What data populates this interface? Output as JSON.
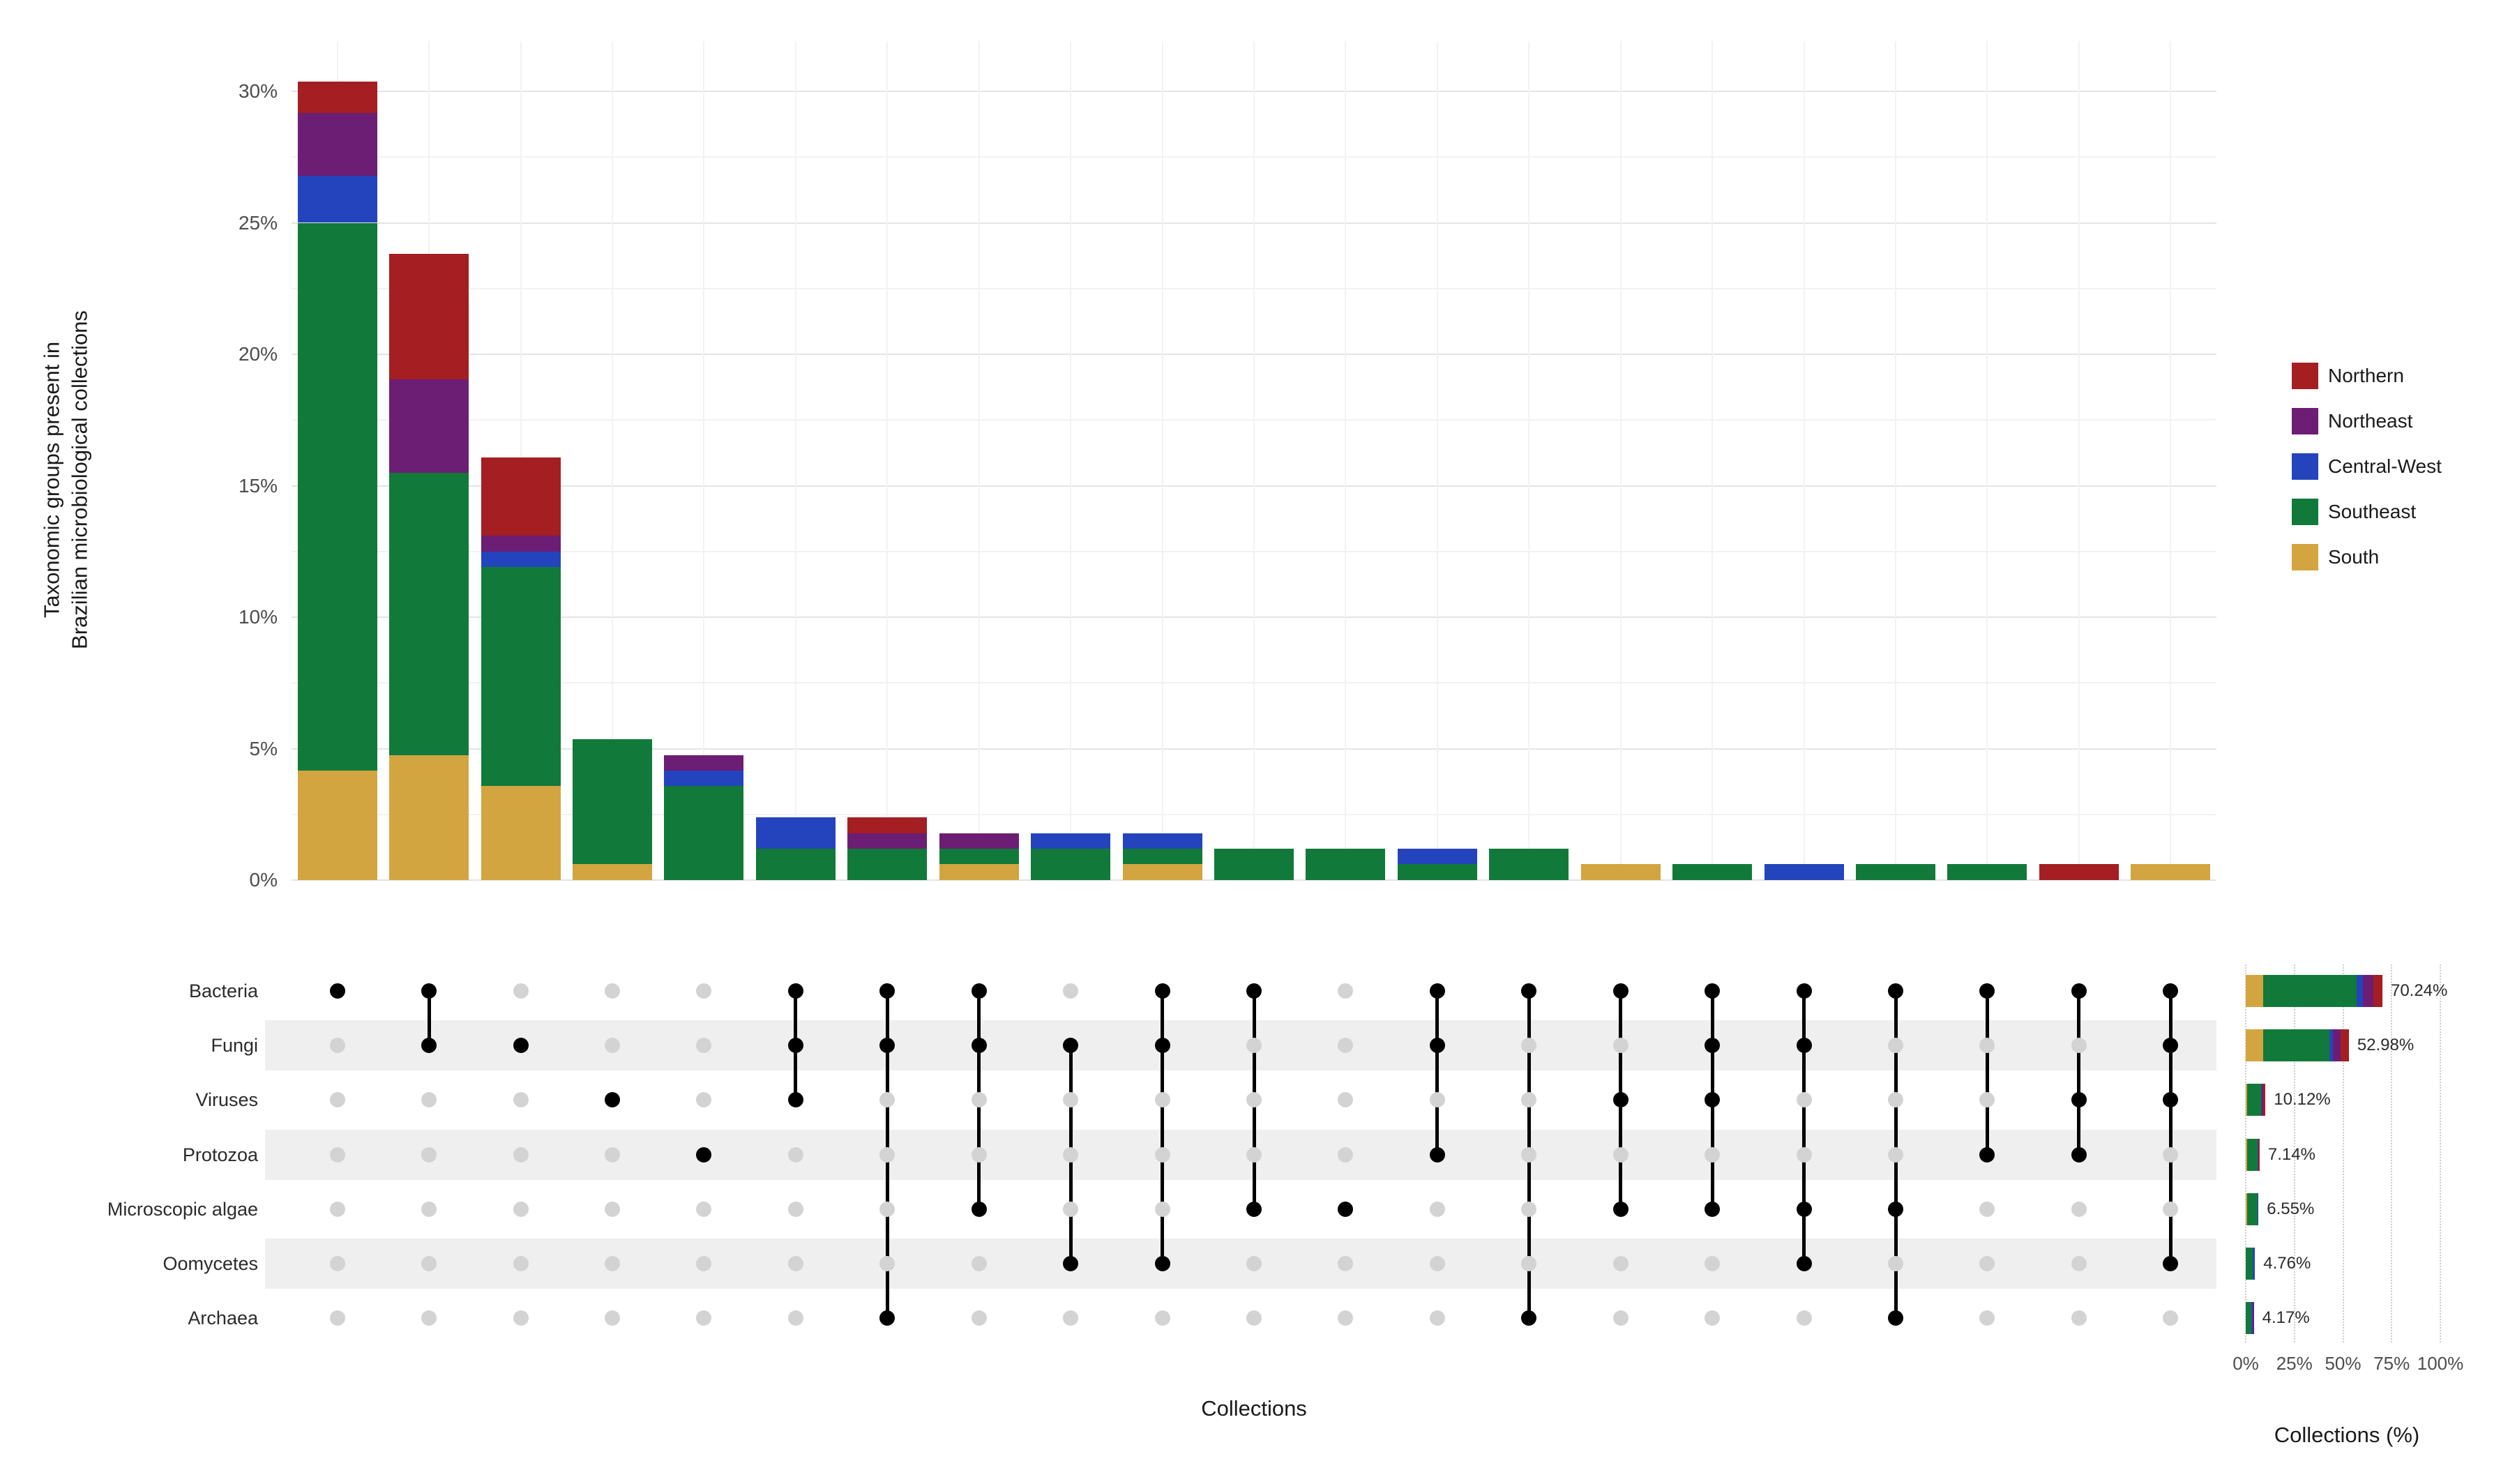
{
  "chart_data": {
    "type": "upset",
    "description": "UpSet plot: stacked intersection-size bars (top), set membership dot matrix (bottom left), stacked set-size bars (bottom right). All values in percent of collections.",
    "xlabel": "Collections",
    "ylabel_lines": [
      "Taxonomic groups present in",
      "Brazilian microbiological collections"
    ],
    "regions": [
      "South",
      "Southeast",
      "Central-West",
      "Northeast",
      "Northern"
    ],
    "region_colors": {
      "Northern": "#a41e22",
      "Northeast": "#6c1d74",
      "Central-West": "#2444bd",
      "Southeast": "#117a3a",
      "South": "#d3a540"
    },
    "style": {
      "grid_major": "#e4e4e4",
      "grid_minor": "#f2f2f2",
      "stripe": "#efefef",
      "inactive_dot": "#d3d3d3",
      "active_dot": "#000000",
      "dotted_grid": "#cccccc",
      "tick_text": "#4d4d4d",
      "label_text": "#2b2b2b"
    },
    "main_y_axis": {
      "tick_labels": [
        "0%",
        "5%",
        "10%",
        "15%",
        "20%",
        "25%",
        "30%"
      ],
      "tick_values": [
        0,
        5,
        10,
        15,
        20,
        25,
        30
      ],
      "max": 30.5
    },
    "size_axis": {
      "label": "Collections (%)",
      "tick_labels": [
        "0%",
        "25%",
        "50%",
        "75%",
        "100%"
      ],
      "tick_values": [
        0,
        25,
        50,
        75,
        100
      ],
      "max": 100
    },
    "set_rows": [
      {
        "name": "Bacteria",
        "percent": 70.24,
        "percent_label": "70.24%",
        "segments": {
          "South": 8.93,
          "Southeast": 48.21,
          "Central-West": 2.98,
          "Northeast": 5.36,
          "Northern": 4.76
        }
      },
      {
        "name": "Fungi",
        "percent": 52.98,
        "percent_label": "52.98%",
        "segments": {
          "South": 8.93,
          "Southeast": 33.93,
          "Central-West": 1.79,
          "Northeast": 4.16,
          "Northern": 4.17
        }
      },
      {
        "name": "Viruses",
        "percent": 10.12,
        "percent_label": "10.12%",
        "segments": {
          "South": 0.6,
          "Southeast": 7.14,
          "Central-West": 0.6,
          "Northeast": 0.59,
          "Northern": 1.19
        }
      },
      {
        "name": "Protozoa",
        "percent": 7.14,
        "percent_label": "7.14%",
        "segments": {
          "South": 0.6,
          "Southeast": 5.36,
          "Central-West": 0.59,
          "Northern": 0.59
        }
      },
      {
        "name": "Microscopic algae",
        "percent": 6.55,
        "percent_label": "6.55%",
        "segments": {
          "South": 0.6,
          "Southeast": 5.35,
          "Central-West": 0.6
        }
      },
      {
        "name": "Oomycetes",
        "percent": 4.76,
        "percent_label": "4.76%",
        "segments": {
          "Southeast": 3.57,
          "Central-West": 1.19
        }
      },
      {
        "name": "Archaea",
        "percent": 4.17,
        "percent_label": "4.17%",
        "segments": {
          "Southeast": 2.98,
          "Central-West": 0.6,
          "Northeast": 0.59
        }
      }
    ],
    "intersections": [
      {
        "sets": [
          "Bacteria"
        ],
        "total_percent": 30.36,
        "segments": {
          "South": 4.17,
          "Southeast": 20.83,
          "Central-West": 1.79,
          "Northeast": 2.38,
          "Northern": 1.19
        }
      },
      {
        "sets": [
          "Bacteria",
          "Fungi"
        ],
        "total_percent": 23.81,
        "segments": {
          "South": 4.76,
          "Southeast": 10.72,
          "Northeast": 3.57,
          "Northern": 4.76
        }
      },
      {
        "sets": [
          "Fungi"
        ],
        "total_percent": 16.07,
        "segments": {
          "South": 3.57,
          "Southeast": 8.33,
          "Central-West": 0.6,
          "Northeast": 0.6,
          "Northern": 2.97
        }
      },
      {
        "sets": [
          "Viruses"
        ],
        "total_percent": 5.36,
        "segments": {
          "South": 0.6,
          "Southeast": 4.76
        }
      },
      {
        "sets": [
          "Protozoa"
        ],
        "total_percent": 4.76,
        "segments": {
          "Southeast": 3.57,
          "Central-West": 0.6,
          "Northeast": 0.59
        }
      },
      {
        "sets": [
          "Bacteria",
          "Fungi",
          "Viruses"
        ],
        "total_percent": 2.38,
        "segments": {
          "Southeast": 1.19,
          "Central-West": 1.19
        }
      },
      {
        "sets": [
          "Bacteria",
          "Fungi",
          "Archaea"
        ],
        "total_percent": 2.38,
        "segments": {
          "Southeast": 1.19,
          "Northeast": 0.6,
          "Northern": 0.59
        }
      },
      {
        "sets": [
          "Bacteria",
          "Fungi",
          "Microscopic algae"
        ],
        "total_percent": 1.79,
        "segments": {
          "South": 0.6,
          "Southeast": 0.6,
          "Northeast": 0.59
        }
      },
      {
        "sets": [
          "Fungi",
          "Oomycetes"
        ],
        "total_percent": 1.79,
        "segments": {
          "Southeast": 1.19,
          "Central-West": 0.6
        }
      },
      {
        "sets": [
          "Bacteria",
          "Fungi",
          "Oomycetes"
        ],
        "total_percent": 1.79,
        "segments": {
          "South": 0.6,
          "Southeast": 0.59,
          "Central-West": 0.6
        }
      },
      {
        "sets": [
          "Bacteria",
          "Microscopic algae"
        ],
        "total_percent": 1.19,
        "segments": {
          "Southeast": 1.19
        }
      },
      {
        "sets": [
          "Microscopic algae"
        ],
        "total_percent": 1.19,
        "segments": {
          "Southeast": 1.19
        }
      },
      {
        "sets": [
          "Bacteria",
          "Fungi",
          "Protozoa"
        ],
        "total_percent": 1.19,
        "segments": {
          "Southeast": 0.6,
          "Central-West": 0.59
        }
      },
      {
        "sets": [
          "Bacteria",
          "Archaea"
        ],
        "total_percent": 1.19,
        "segments": {
          "Southeast": 1.19
        }
      },
      {
        "sets": [
          "Bacteria",
          "Viruses",
          "Microscopic algae"
        ],
        "total_percent": 0.6,
        "segments": {
          "South": 0.6
        }
      },
      {
        "sets": [
          "Bacteria",
          "Fungi",
          "Viruses",
          "Microscopic algae"
        ],
        "total_percent": 0.6,
        "segments": {
          "Southeast": 0.6
        }
      },
      {
        "sets": [
          "Bacteria",
          "Fungi",
          "Microscopic algae",
          "Oomycetes"
        ],
        "total_percent": 0.6,
        "segments": {
          "Central-West": 0.6
        }
      },
      {
        "sets": [
          "Bacteria",
          "Microscopic algae",
          "Archaea"
        ],
        "total_percent": 0.6,
        "segments": {
          "Southeast": 0.6
        }
      },
      {
        "sets": [
          "Bacteria",
          "Protozoa"
        ],
        "total_percent": 0.6,
        "segments": {
          "Southeast": 0.6
        }
      },
      {
        "sets": [
          "Bacteria",
          "Viruses",
          "Protozoa"
        ],
        "total_percent": 0.6,
        "segments": {
          "Northern": 0.6
        }
      },
      {
        "sets": [
          "Bacteria",
          "Fungi",
          "Viruses",
          "Oomycetes"
        ],
        "total_percent": 0.6,
        "segments": {
          "South": 0.6
        }
      }
    ]
  },
  "legend": {
    "items": [
      {
        "label": "Northern",
        "color": "#a41e22"
      },
      {
        "label": "Northeast",
        "color": "#6c1d74"
      },
      {
        "label": "Central-West",
        "color": "#2444bd"
      },
      {
        "label": "Southeast",
        "color": "#117a3a"
      },
      {
        "label": "South",
        "color": "#d3a540"
      }
    ]
  }
}
